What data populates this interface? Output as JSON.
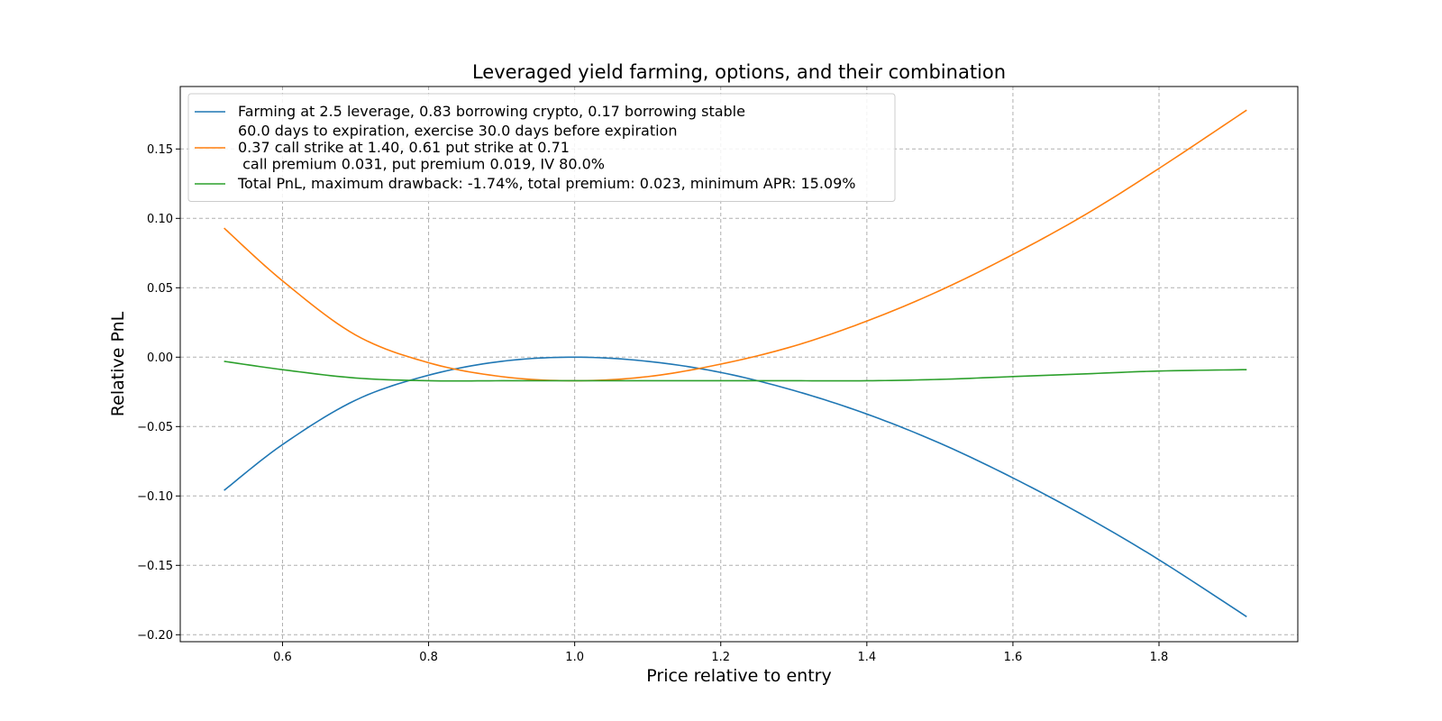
{
  "chart_data": {
    "type": "line",
    "title": "Leveraged yield farming, options, and their combination",
    "xlabel": "Price relative to entry",
    "ylabel": "Relative PnL",
    "xlim": [
      0.46,
      1.99
    ],
    "ylim": [
      -0.205,
      0.195
    ],
    "xticks": [
      0.6,
      0.8,
      1.0,
      1.2,
      1.4,
      1.6,
      1.8
    ],
    "xtick_labels": [
      "0.6",
      "0.8",
      "1.0",
      "1.2",
      "1.4",
      "1.6",
      "1.8"
    ],
    "yticks": [
      -0.2,
      -0.15,
      -0.1,
      -0.05,
      0.0,
      0.05,
      0.1,
      0.15
    ],
    "ytick_labels": [
      "−0.20",
      "−0.15",
      "−0.10",
      "−0.05",
      "0.00",
      "0.05",
      "0.10",
      "0.15"
    ],
    "grid": true,
    "legend_position": "upper left",
    "series": [
      {
        "name": "Farming at 2.5 leverage, 0.83 borrowing crypto, 0.17 borrowing stable",
        "legend_lines": [
          "Farming at 2.5 leverage, 0.83 borrowing crypto, 0.17 borrowing stable"
        ],
        "color": "#1f77b4",
        "x": [
          0.52,
          0.6,
          0.7,
          0.8,
          0.9,
          1.0,
          1.1,
          1.2,
          1.3,
          1.4,
          1.5,
          1.6,
          1.7,
          1.8,
          1.92
        ],
        "y": [
          -0.096,
          -0.063,
          -0.031,
          -0.013,
          -0.003,
          0.0,
          -0.003,
          -0.011,
          -0.024,
          -0.041,
          -0.062,
          -0.087,
          -0.115,
          -0.146,
          -0.187
        ]
      },
      {
        "name": "60.0 days to expiration, exercise 30.0 days before expiration 0.37 call strike at 1.40, 0.61 put strike at 0.71 call premium 0.031, put premium 0.019, IV 80.0%",
        "legend_lines": [
          "60.0 days to expiration, exercise 30.0 days before expiration",
          "0.37 call strike at 1.40, 0.61 put strike at 0.71",
          " call premium 0.031, put premium 0.019, IV 80.0%"
        ],
        "color": "#ff7f0e",
        "x": [
          0.52,
          0.6,
          0.7,
          0.8,
          0.9,
          1.0,
          1.1,
          1.2,
          1.3,
          1.4,
          1.5,
          1.6,
          1.7,
          1.8,
          1.92
        ],
        "y": [
          0.093,
          0.055,
          0.016,
          -0.004,
          -0.014,
          -0.017,
          -0.014,
          -0.005,
          0.008,
          0.026,
          0.048,
          0.074,
          0.103,
          0.136,
          0.178
        ]
      },
      {
        "name": "Total PnL, maximum drawback: -1.74%, total premium: 0.023, minimum APR: 15.09%",
        "legend_lines": [
          "Total PnL, maximum drawback: -1.74%, total premium: 0.023, minimum APR: 15.09%"
        ],
        "color": "#2ca02c",
        "x": [
          0.52,
          0.6,
          0.7,
          0.8,
          0.9,
          1.0,
          1.1,
          1.2,
          1.3,
          1.4,
          1.5,
          1.6,
          1.7,
          1.8,
          1.92
        ],
        "y": [
          -0.003,
          -0.009,
          -0.015,
          -0.017,
          -0.017,
          -0.017,
          -0.017,
          -0.017,
          -0.017,
          -0.017,
          -0.016,
          -0.014,
          -0.012,
          -0.01,
          -0.009
        ]
      }
    ]
  }
}
